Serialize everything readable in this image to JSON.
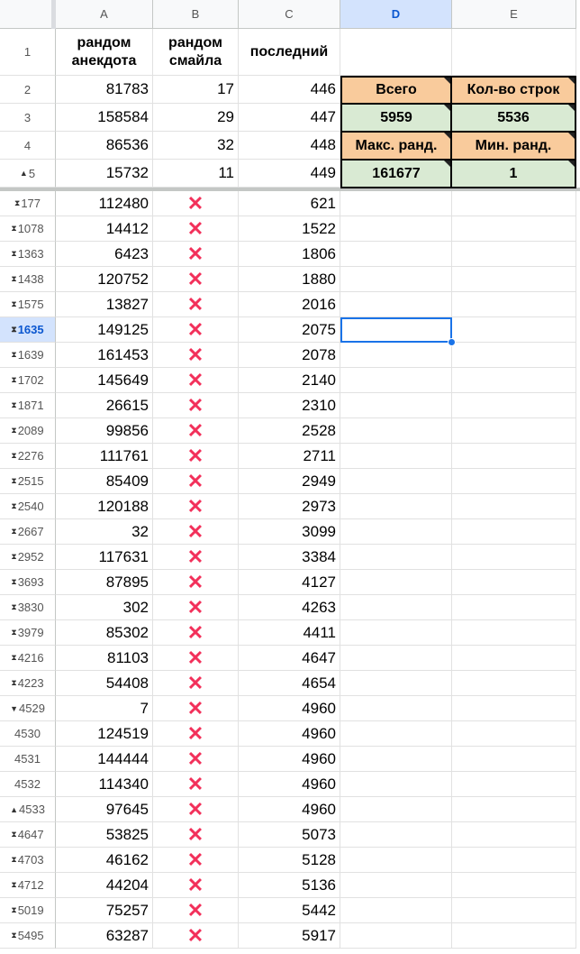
{
  "columns": [
    "A",
    "B",
    "C",
    "D",
    "E"
  ],
  "header_rows": [
    {
      "row": "1",
      "a": "рандом анекдота",
      "b": "рандом смайла",
      "c": "последний"
    },
    {
      "row": "2",
      "a": "81783",
      "b": "17",
      "c": "446"
    },
    {
      "row": "3",
      "a": "158584",
      "b": "29",
      "c": "447"
    },
    {
      "row": "4",
      "a": "86536",
      "b": "32",
      "c": "448"
    },
    {
      "row": "5",
      "a": "15732",
      "b": "11",
      "c": "449",
      "icon": "collapse-up-icon"
    }
  ],
  "summary": {
    "total_label": "Всего",
    "rows_label": "Кол-во строк",
    "total_value": "5959",
    "rows_value": "5536",
    "max_label": "Макс. ранд.",
    "min_label": "Мин. ранд.",
    "max_value": "161677",
    "min_value": "1",
    "label_color": "#f9cb9c",
    "value_color": "#d9ead3"
  },
  "mark": "❌",
  "mark_color": "#f2305a",
  "selected_cell": "D1635",
  "rows": [
    {
      "row": "177",
      "a": "112480",
      "c": "621",
      "icon": "expand"
    },
    {
      "row": "1078",
      "a": "14412",
      "c": "1522",
      "icon": "expand"
    },
    {
      "row": "1363",
      "a": "6423",
      "c": "1806",
      "icon": "expand"
    },
    {
      "row": "1438",
      "a": "120752",
      "c": "1880",
      "icon": "expand"
    },
    {
      "row": "1575",
      "a": "13827",
      "c": "2016",
      "icon": "expand"
    },
    {
      "row": "1635",
      "a": "149125",
      "c": "2075",
      "icon": "expand"
    },
    {
      "row": "1639",
      "a": "161453",
      "c": "2078",
      "icon": "expand"
    },
    {
      "row": "1702",
      "a": "145649",
      "c": "2140",
      "icon": "expand"
    },
    {
      "row": "1871",
      "a": "26615",
      "c": "2310",
      "icon": "expand"
    },
    {
      "row": "2089",
      "a": "99856",
      "c": "2528",
      "icon": "expand"
    },
    {
      "row": "2276",
      "a": "111761",
      "c": "2711",
      "icon": "expand"
    },
    {
      "row": "2515",
      "a": "85409",
      "c": "2949",
      "icon": "expand"
    },
    {
      "row": "2540",
      "a": "120188",
      "c": "2973",
      "icon": "expand"
    },
    {
      "row": "2667",
      "a": "32",
      "c": "3099",
      "icon": "expand"
    },
    {
      "row": "2952",
      "a": "117631",
      "c": "3384",
      "icon": "expand"
    },
    {
      "row": "3693",
      "a": "87895",
      "c": "4127",
      "icon": "expand"
    },
    {
      "row": "3830",
      "a": "302",
      "c": "4263",
      "icon": "expand"
    },
    {
      "row": "3979",
      "a": "85302",
      "c": "4411",
      "icon": "expand"
    },
    {
      "row": "4216",
      "a": "81103",
      "c": "4647",
      "icon": "expand"
    },
    {
      "row": "4223",
      "a": "54408",
      "c": "4654",
      "icon": "expand"
    },
    {
      "row": "4529",
      "a": "7",
      "c": "4960",
      "icon": "down"
    },
    {
      "row": "4530",
      "a": "124519",
      "c": "4960",
      "icon": ""
    },
    {
      "row": "4531",
      "a": "144444",
      "c": "4960",
      "icon": ""
    },
    {
      "row": "4532",
      "a": "114340",
      "c": "4960",
      "icon": ""
    },
    {
      "row": "4533",
      "a": "97645",
      "c": "4960",
      "icon": "up"
    },
    {
      "row": "4647",
      "a": "53825",
      "c": "5073",
      "icon": "expand"
    },
    {
      "row": "4703",
      "a": "46162",
      "c": "5128",
      "icon": "expand"
    },
    {
      "row": "4712",
      "a": "44204",
      "c": "5136",
      "icon": "expand"
    },
    {
      "row": "5019",
      "a": "75257",
      "c": "5442",
      "icon": "expand"
    },
    {
      "row": "5495",
      "a": "63287",
      "c": "5917",
      "icon": "expand"
    }
  ]
}
